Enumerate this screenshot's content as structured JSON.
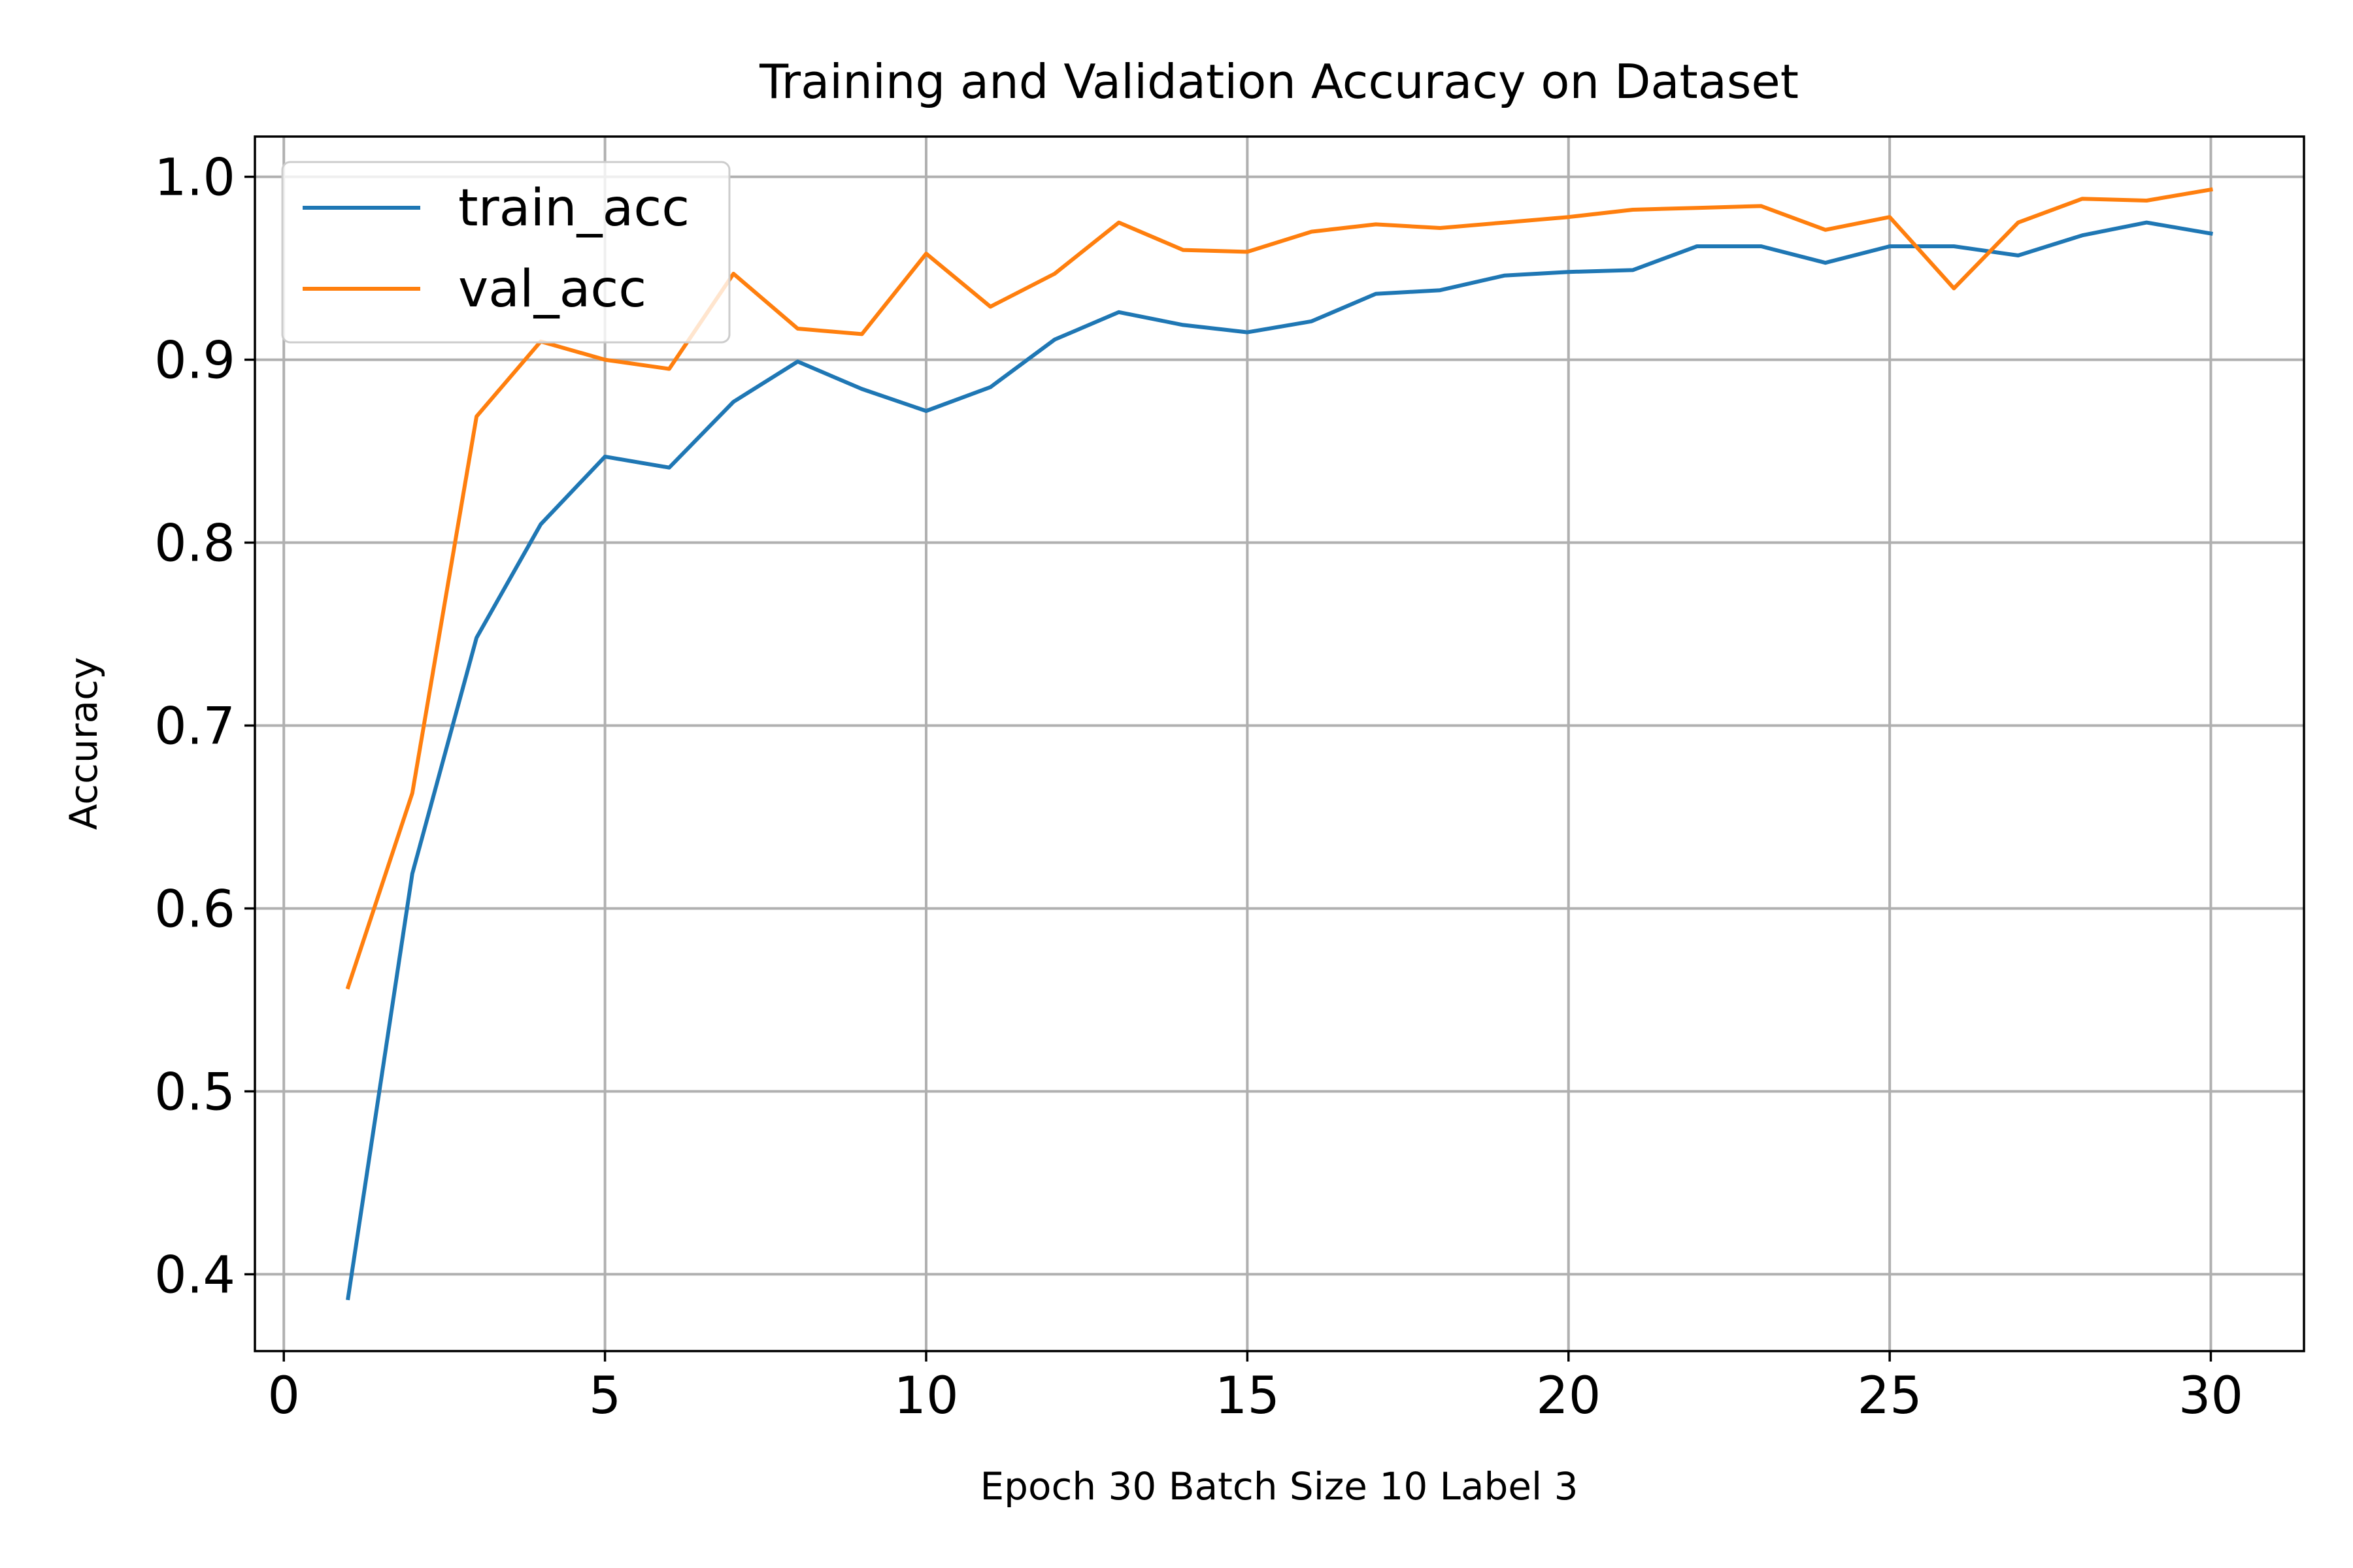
{
  "chart_data": {
    "type": "line",
    "title": "Training and Validation Accuracy on Dataset",
    "xlabel": "Epoch 30 Batch Size 10 Label 3",
    "ylabel": "Accuracy",
    "xlim": [
      -0.45,
      31.45
    ],
    "ylim": [
      0.358,
      1.022
    ],
    "xticks": [
      0,
      5,
      10,
      15,
      20,
      25,
      30
    ],
    "yticks": [
      0.4,
      0.5,
      0.6,
      0.7,
      0.8,
      0.9,
      1.0
    ],
    "xtick_labels": [
      "0",
      "5",
      "10",
      "15",
      "20",
      "25",
      "30"
    ],
    "ytick_labels": [
      "0.4",
      "0.5",
      "0.6",
      "0.7",
      "0.8",
      "0.9",
      "1.0"
    ],
    "grid": true,
    "legend_position": "top-left",
    "x": [
      1,
      2,
      3,
      4,
      5,
      6,
      7,
      8,
      9,
      10,
      11,
      12,
      13,
      14,
      15,
      16,
      17,
      18,
      19,
      20,
      21,
      22,
      23,
      24,
      25,
      26,
      27,
      28,
      29,
      30
    ],
    "series": [
      {
        "name": "train_acc",
        "color": "#1f77b4",
        "values": [
          0.387,
          0.619,
          0.748,
          0.81,
          0.847,
          0.841,
          0.877,
          0.899,
          0.884,
          0.872,
          0.885,
          0.911,
          0.926,
          0.919,
          0.915,
          0.921,
          0.936,
          0.938,
          0.946,
          0.948,
          0.949,
          0.962,
          0.962,
          0.953,
          0.962,
          0.962,
          0.957,
          0.968,
          0.975,
          0.969
        ]
      },
      {
        "name": "val_acc",
        "color": "#ff7f0e",
        "values": [
          0.557,
          0.663,
          0.869,
          0.91,
          0.9,
          0.895,
          0.947,
          0.917,
          0.914,
          0.958,
          0.929,
          0.947,
          0.975,
          0.96,
          0.959,
          0.97,
          0.974,
          0.972,
          0.975,
          0.978,
          0.982,
          0.983,
          0.984,
          0.971,
          0.978,
          0.939,
          0.975,
          0.988,
          0.987,
          0.993
        ]
      }
    ]
  }
}
